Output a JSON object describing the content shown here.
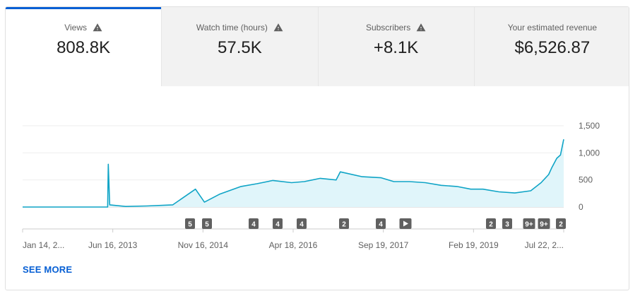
{
  "tabs": [
    {
      "label": "Views",
      "value": "808.8K",
      "warning": true,
      "active": true
    },
    {
      "label": "Watch time (hours)",
      "value": "57.5K",
      "warning": true,
      "active": false
    },
    {
      "label": "Subscribers",
      "value": "+8.1K",
      "warning": true,
      "active": false
    },
    {
      "label": "Your estimated revenue",
      "value": "$6,526.87",
      "warning": false,
      "active": false
    }
  ],
  "chart_data": {
    "type": "line",
    "series": [
      {
        "x": [
          "2012-01-14",
          "2013-05-20",
          "2013-05-24",
          "2013-06-01",
          "2013-09-01",
          "2014-01-01",
          "2014-06-01",
          "2014-10-10",
          "2014-12-01",
          "2015-03-01",
          "2015-07-01",
          "2015-10-01",
          "2016-01-01",
          "2016-04-18",
          "2016-07-01",
          "2016-10-01",
          "2017-01-01",
          "2017-01-25",
          "2017-06-01",
          "2017-09-19",
          "2017-12-01",
          "2018-03-01",
          "2018-06-01",
          "2018-09-01",
          "2018-12-01",
          "2019-02-19",
          "2019-05-01",
          "2019-08-01",
          "2019-11-01",
          "2020-02-01",
          "2020-04-01",
          "2020-05-15",
          "2020-06-01",
          "2020-07-01",
          "2020-07-22",
          "2020-08-10"
        ],
        "values": [
          0,
          0,
          790,
          40,
          10,
          20,
          40,
          330,
          90,
          240,
          380,
          430,
          490,
          450,
          470,
          530,
          500,
          650,
          560,
          540,
          470,
          470,
          450,
          400,
          380,
          330,
          330,
          280,
          260,
          300,
          450,
          600,
          720,
          900,
          960,
          1250
        ]
      }
    ],
    "x_tick_labels": [
      "Jan 14, 2...",
      "Jun 16, 2013",
      "Nov 16, 2014",
      "Apr 18, 2016",
      "Sep 19, 2017",
      "Feb 19, 2019",
      "Jul 22, 2..."
    ],
    "y_ticks": [
      0,
      500,
      1000,
      1500
    ],
    "y_tick_labels": [
      "0",
      "500",
      "1,000",
      "1,500"
    ],
    "ylim": [
      0,
      1500
    ],
    "grid": true,
    "line_color": "#0fa4c6",
    "fill_color": "#e0f5fa",
    "markers": [
      "5",
      "5",
      "4",
      "4",
      "4",
      "2",
      "4",
      "play-icon",
      "2",
      "3",
      "9+",
      "9+",
      "2"
    ]
  },
  "footer": {
    "see_more": "SEE MORE"
  },
  "colors": {
    "accent": "#065fd4"
  }
}
